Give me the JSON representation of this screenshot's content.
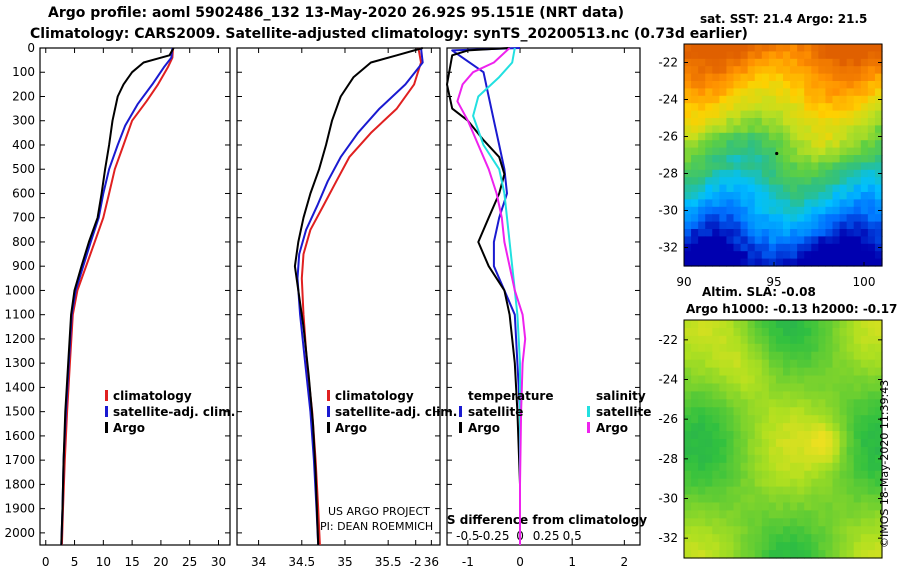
{
  "header": {
    "line1": "Argo profile: aoml 5902486_132 13-May-2020 26.92S 95.151E (NRT data)",
    "line2": "Climatology: CARS2009. Satellite-adjusted climatology: synTS_20200513.nc (0.73d earlier)"
  },
  "credit": "©IMOS 18-May-2020 11:39:43",
  "project": {
    "line1": "US ARGO PROJECT",
    "line2": "PI: DEAN ROEMMICH"
  },
  "colors": {
    "climatology": "#e02020",
    "satellite": "#1a1ad0",
    "argo": "#000000",
    "sat_sal": "#22e0e0",
    "argo_sal": "#ee22ee"
  },
  "chart_data": [
    {
      "type": "line",
      "name": "temperature-profile",
      "xlim": [
        -1,
        32
      ],
      "ylim": [
        2050,
        0
      ],
      "xticks": [
        0,
        5,
        10,
        15,
        20,
        25,
        30
      ],
      "yticks": [
        0,
        100,
        200,
        300,
        400,
        500,
        600,
        700,
        800,
        900,
        1000,
        1100,
        1200,
        1300,
        1400,
        1500,
        1600,
        1700,
        1800,
        1900,
        2000
      ],
      "legend": [
        "climatology",
        "satellite-adj. clim.",
        "Argo"
      ],
      "series": [
        {
          "name": "climatology",
          "color": "#e02020",
          "points": [
            [
              22.1,
              0
            ],
            [
              22,
              40
            ],
            [
              21.2,
              80
            ],
            [
              19.5,
              150
            ],
            [
              17.5,
              220
            ],
            [
              15,
              300
            ],
            [
              13.5,
              400
            ],
            [
              12,
              500
            ],
            [
              11,
              600
            ],
            [
              10,
              700
            ],
            [
              8.5,
              800
            ],
            [
              7,
              900
            ],
            [
              5.5,
              1000
            ],
            [
              4.7,
              1100
            ],
            [
              4.2,
              1300
            ],
            [
              3.7,
              1500
            ],
            [
              3.3,
              1700
            ],
            [
              3,
              1900
            ],
            [
              2.8,
              2050
            ]
          ]
        },
        {
          "name": "satellite-adj. clim.",
          "color": "#1a1ad0",
          "points": [
            [
              22,
              0
            ],
            [
              21.8,
              40
            ],
            [
              20.5,
              80
            ],
            [
              18.5,
              150
            ],
            [
              16,
              230
            ],
            [
              13.8,
              320
            ],
            [
              12.5,
              400
            ],
            [
              11,
              500
            ],
            [
              10,
              600
            ],
            [
              9.2,
              700
            ],
            [
              7.8,
              800
            ],
            [
              6.5,
              900
            ],
            [
              5.2,
              1000
            ],
            [
              4.5,
              1100
            ],
            [
              4,
              1300
            ],
            [
              3.5,
              1500
            ],
            [
              3.1,
              1700
            ],
            [
              2.9,
              1900
            ],
            [
              2.7,
              2050
            ]
          ]
        },
        {
          "name": "Argo",
          "color": "#000000",
          "points": [
            [
              22.2,
              0
            ],
            [
              21.5,
              30
            ],
            [
              20,
              40
            ],
            [
              17,
              60
            ],
            [
              15,
              100
            ],
            [
              13.5,
              150
            ],
            [
              12.5,
              200
            ],
            [
              11.6,
              300
            ],
            [
              11,
              400
            ],
            [
              10.3,
              500
            ],
            [
              9.7,
              600
            ],
            [
              9,
              700
            ],
            [
              7.5,
              800
            ],
            [
              6.2,
              900
            ],
            [
              5,
              1000
            ],
            [
              4.4,
              1100
            ],
            [
              3.9,
              1300
            ],
            [
              3.4,
              1500
            ],
            [
              3.1,
              1700
            ],
            [
              2.9,
              1900
            ],
            [
              2.7,
              2050
            ]
          ]
        }
      ]
    },
    {
      "type": "line",
      "name": "salinity-profile",
      "xlim": [
        33.75,
        36.1
      ],
      "ylim": [
        2050,
        0
      ],
      "xticks": [
        34,
        34.5,
        35,
        35.5,
        36
      ],
      "xticklabels": [
        "34",
        "34.5",
        "35",
        "35.5",
        "36"
      ],
      "legend": [
        "climatology",
        "satellite-adj. clim.",
        "Argo"
      ],
      "series": [
        {
          "name": "climatology",
          "color": "#e02020",
          "points": [
            [
              35.85,
              0
            ],
            [
              35.88,
              60
            ],
            [
              35.8,
              150
            ],
            [
              35.6,
              250
            ],
            [
              35.3,
              350
            ],
            [
              35.05,
              450
            ],
            [
              34.9,
              550
            ],
            [
              34.75,
              650
            ],
            [
              34.6,
              750
            ],
            [
              34.52,
              850
            ],
            [
              34.5,
              950
            ],
            [
              34.52,
              1100
            ],
            [
              34.56,
              1300
            ],
            [
              34.62,
              1500
            ],
            [
              34.66,
              1700
            ],
            [
              34.69,
              1900
            ],
            [
              34.71,
              2050
            ]
          ]
        },
        {
          "name": "satellite-adj. clim.",
          "color": "#1a1ad0",
          "points": [
            [
              35.88,
              0
            ],
            [
              35.9,
              60
            ],
            [
              35.7,
              150
            ],
            [
              35.4,
              250
            ],
            [
              35.15,
              350
            ],
            [
              34.95,
              450
            ],
            [
              34.8,
              550
            ],
            [
              34.68,
              650
            ],
            [
              34.55,
              750
            ],
            [
              34.47,
              850
            ],
            [
              34.45,
              950
            ],
            [
              34.48,
              1100
            ],
            [
              34.54,
              1300
            ],
            [
              34.6,
              1500
            ],
            [
              34.64,
              1700
            ],
            [
              34.67,
              1900
            ],
            [
              34.69,
              2050
            ]
          ]
        },
        {
          "name": "Argo",
          "color": "#000000",
          "points": [
            [
              35.9,
              0
            ],
            [
              35.6,
              30
            ],
            [
              35.3,
              60
            ],
            [
              35.1,
              120
            ],
            [
              34.95,
              200
            ],
            [
              34.85,
              300
            ],
            [
              34.78,
              400
            ],
            [
              34.7,
              500
            ],
            [
              34.6,
              600
            ],
            [
              34.52,
              700
            ],
            [
              34.46,
              800
            ],
            [
              34.42,
              900
            ],
            [
              34.46,
              1000
            ],
            [
              34.52,
              1150
            ],
            [
              34.58,
              1350
            ],
            [
              34.63,
              1550
            ],
            [
              34.66,
              1750
            ],
            [
              34.68,
              1950
            ],
            [
              34.69,
              2050
            ]
          ]
        }
      ]
    },
    {
      "type": "line",
      "name": "difference-profile",
      "xlim": [
        -1.4,
        2.3
      ],
      "ylim": [
        2050,
        0
      ],
      "xticks": [
        -0.5,
        -0.25,
        0,
        0.25,
        0.5
      ],
      "xticklabels": [
        "-0.5",
        "-0.25",
        "0",
        "0.25",
        "0.5"
      ],
      "xticks_temp": [
        -2,
        -1,
        0,
        1,
        2
      ],
      "xticklabels_temp": [
        "-2",
        "-1",
        "0",
        "1",
        "2"
      ],
      "xlabel": "S difference from climatology",
      "legend": {
        "temperature": "temperature",
        "salinity": "salinity",
        "satellite": "satellite",
        "argo": "Argo"
      },
      "series": [
        {
          "name": "temperature satellite",
          "color": "#1a1ad0",
          "points": [
            [
              0,
              0
            ],
            [
              -1.3,
              10
            ],
            [
              -1.1,
              40
            ],
            [
              -0.7,
              100
            ],
            [
              -0.6,
              200
            ],
            [
              -0.5,
              300
            ],
            [
              -0.4,
              400
            ],
            [
              -0.3,
              500
            ],
            [
              -0.25,
              600
            ],
            [
              -0.4,
              700
            ],
            [
              -0.5,
              800
            ],
            [
              -0.5,
              900
            ],
            [
              -0.3,
              1000
            ],
            [
              -0.1,
              1100
            ],
            [
              -0.05,
              1300
            ],
            [
              0,
              1500
            ],
            [
              0,
              1800
            ],
            [
              0,
              2050
            ]
          ]
        },
        {
          "name": "temperature Argo",
          "color": "#000000",
          "points": [
            [
              -0.2,
              0
            ],
            [
              -1.0,
              10
            ],
            [
              -1.3,
              30
            ],
            [
              -1.4,
              150
            ],
            [
              -1.3,
              250
            ],
            [
              -1.0,
              300
            ],
            [
              -0.7,
              380
            ],
            [
              -0.4,
              450
            ],
            [
              -0.3,
              520
            ],
            [
              -0.4,
              600
            ],
            [
              -0.6,
              700
            ],
            [
              -0.8,
              800
            ],
            [
              -0.6,
              900
            ],
            [
              -0.3,
              1000
            ],
            [
              -0.2,
              1100
            ],
            [
              -0.1,
              1300
            ],
            [
              -0.05,
              1500
            ],
            [
              0,
              1800
            ],
            [
              0,
              2050
            ]
          ]
        },
        {
          "name": "salinity satellite",
          "color": "#22e0e0",
          "points": [
            [
              -0.1,
              0
            ],
            [
              -0.15,
              60
            ],
            [
              -0.4,
              120
            ],
            [
              -0.8,
              200
            ],
            [
              -0.9,
              280
            ],
            [
              -0.7,
              400
            ],
            [
              -0.4,
              500
            ],
            [
              -0.3,
              600
            ],
            [
              -0.25,
              700
            ],
            [
              -0.2,
              800
            ],
            [
              -0.15,
              900
            ],
            [
              -0.1,
              1000
            ],
            [
              -0.05,
              1100
            ],
            [
              0,
              1300
            ],
            [
              0,
              1600
            ],
            [
              0,
              2050
            ]
          ]
        },
        {
          "name": "salinity Argo",
          "color": "#ee22ee",
          "points": [
            [
              -0.2,
              0
            ],
            [
              -0.5,
              60
            ],
            [
              -0.9,
              100
            ],
            [
              -1.1,
              150
            ],
            [
              -1.2,
              220
            ],
            [
              -1.0,
              300
            ],
            [
              -0.8,
              400
            ],
            [
              -0.6,
              500
            ],
            [
              -0.45,
              600
            ],
            [
              -0.35,
              700
            ],
            [
              -0.3,
              800
            ],
            [
              -0.2,
              900
            ],
            [
              -0.1,
              1000
            ],
            [
              0.05,
              1100
            ],
            [
              0.1,
              1200
            ],
            [
              0.05,
              1300
            ],
            [
              0.02,
              1500
            ],
            [
              0,
              1800
            ],
            [
              0,
              2050
            ]
          ]
        }
      ]
    },
    {
      "type": "heatmap",
      "name": "sst-map",
      "title": "sat. SST: 21.4 Argo: 21.5",
      "xlim": [
        90,
        101
      ],
      "ylim": [
        -33,
        -21
      ],
      "xticks": [
        90,
        95,
        100
      ],
      "yticks": [
        -22,
        -24,
        -26,
        -28,
        -30,
        -32
      ],
      "colormap": [
        "#0000b0",
        "#0070ff",
        "#00c0ff",
        "#30c080",
        "#60d040",
        "#c0e020",
        "#ffd000",
        "#ff9000",
        "#e06000"
      ]
    },
    {
      "type": "heatmap",
      "name": "sla-map",
      "title1": "Altim. SLA: -0.08",
      "title2": "Argo h1000: -0.13 h2000: -0.17",
      "xlim": [
        90,
        101
      ],
      "ylim": [
        -33,
        -21
      ],
      "yticks": [
        -22,
        -24,
        -26,
        -28,
        -30,
        -32
      ],
      "colormap": [
        "#20a060",
        "#30c040",
        "#70d030",
        "#b0e020",
        "#f0e020",
        "#f8b020",
        "#f08010"
      ]
    }
  ]
}
